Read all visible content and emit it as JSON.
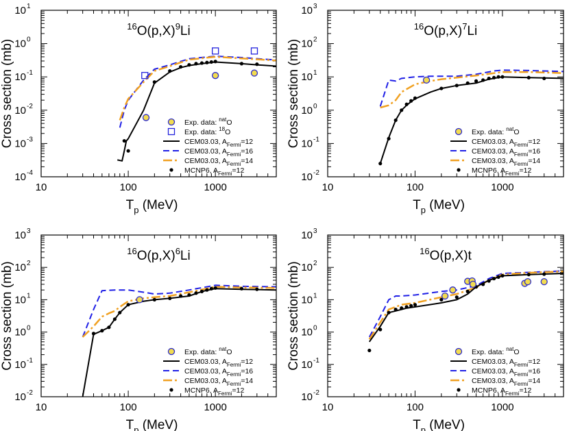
{
  "figure": {
    "ylabel": "Cross section (mb)",
    "xlabel_main": "T",
    "xlabel_sub": "p",
    "xlabel_unit": " (MeV)"
  },
  "chart_data": [
    {
      "type": "line",
      "title_parts": [
        "16",
        "O(p,X)",
        "9",
        "Li"
      ],
      "xscale": "log",
      "yscale": "log",
      "xlim": [
        10,
        5000
      ],
      "ylim": [
        0.0001,
        10
      ],
      "xticks": [
        10,
        100,
        1000
      ],
      "xtick_labels": [
        "10",
        "100",
        "1000"
      ],
      "ytick_labels": [
        [
          "10",
          "-4"
        ],
        [
          "10",
          "-3"
        ],
        [
          "10",
          "-2"
        ],
        [
          "10",
          "-1"
        ],
        [
          "10",
          "0"
        ],
        [
          "10",
          "1"
        ]
      ],
      "yticks": [
        0.0001,
        0.001,
        0.01,
        0.1,
        1,
        10
      ],
      "legend_position": "lower-right",
      "legend": [
        {
          "key": "exp_nat",
          "label": [
            "Exp. data: ",
            "nat",
            "O"
          ]
        },
        {
          "key": "exp_18",
          "label": [
            "Exp. data: ",
            "18",
            "O"
          ]
        },
        {
          "key": "cem12",
          "label": [
            "CEM03.03, A",
            "Fermi",
            "=12"
          ]
        },
        {
          "key": "cem16",
          "label": [
            "CEM03.03, A",
            "Fermi",
            "=16"
          ]
        },
        {
          "key": "cem14",
          "label": [
            "CEM03.03, A",
            "Fermi",
            "=14"
          ]
        },
        {
          "key": "mcnp",
          "label": [
            "MCNP6, A",
            "Fermi",
            "=12"
          ]
        }
      ],
      "series": [
        {
          "key": "cem16",
          "style": "blue-dash",
          "x": [
            80,
            90,
            100,
            150,
            200,
            300,
            500,
            1000,
            2000,
            5000
          ],
          "y": [
            0.003,
            0.01,
            0.02,
            0.08,
            0.17,
            0.23,
            0.35,
            0.42,
            0.38,
            0.32
          ]
        },
        {
          "key": "cem14",
          "style": "orange-dashdot",
          "x": [
            80,
            90,
            100,
            150,
            200,
            300,
            500,
            1000,
            2000,
            5000
          ],
          "y": [
            0.005,
            0.012,
            0.022,
            0.07,
            0.15,
            0.21,
            0.33,
            0.4,
            0.36,
            0.31
          ]
        },
        {
          "key": "cem12",
          "style": "black-solid",
          "x": [
            75,
            85,
            90,
            95,
            100,
            150,
            200,
            300,
            400,
            500,
            700,
            1000,
            2000,
            3000,
            5000
          ],
          "y": [
            0.00032,
            0.0003,
            0.0006,
            0.0012,
            0.0014,
            0.01,
            0.065,
            0.14,
            0.19,
            0.22,
            0.25,
            0.28,
            0.25,
            0.23,
            0.21
          ]
        },
        {
          "key": "mcnp",
          "style": "black-dot",
          "x": [
            90,
            100,
            200,
            300,
            400,
            500,
            600,
            700,
            800,
            900,
            1000,
            2000,
            3000
          ],
          "y": [
            0.0012,
            0.0006,
            0.07,
            0.15,
            0.2,
            0.23,
            0.25,
            0.26,
            0.27,
            0.28,
            0.29,
            0.25,
            0.24
          ]
        },
        {
          "key": "exp_nat",
          "style": "yellow-circle",
          "x": [
            160,
            1000,
            2800
          ],
          "y": [
            0.006,
            0.11,
            0.13
          ]
        },
        {
          "key": "exp_18",
          "style": "blue-square",
          "x": [
            155,
            1000,
            2800
          ],
          "y": [
            0.11,
            0.6,
            0.6
          ]
        }
      ]
    },
    {
      "type": "line",
      "title_parts": [
        "16",
        "O(p,X)",
        "7",
        "Li"
      ],
      "xscale": "log",
      "yscale": "log",
      "xlim": [
        10,
        5000
      ],
      "ylim": [
        0.01,
        1000
      ],
      "xticks": [
        10,
        100,
        1000
      ],
      "xtick_labels": [
        "10",
        "100",
        "1000"
      ],
      "ytick_labels": [
        [
          "10",
          "-2"
        ],
        [
          "10",
          "-1"
        ],
        [
          "10",
          "0"
        ],
        [
          "10",
          "1"
        ],
        [
          "10",
          "2"
        ],
        [
          "10",
          "3"
        ]
      ],
      "yticks": [
        0.01,
        0.1,
        1,
        10,
        100,
        1000
      ],
      "legend_position": "lower-right",
      "legend": [
        {
          "key": "exp_nat",
          "label": [
            "Exp. data: ",
            "nat",
            "O"
          ]
        },
        {
          "key": "cem12",
          "label": [
            "CEM03.03, A",
            "Fermi",
            "=12"
          ]
        },
        {
          "key": "cem16",
          "label": [
            "CEM03.03, A",
            "Fermi",
            "=16"
          ]
        },
        {
          "key": "cem14",
          "label": [
            "CEM03.03, A",
            "Fermi",
            "=14"
          ]
        },
        {
          "key": "mcnp",
          "label": [
            "MCNP6, A",
            "Fermi",
            "=12"
          ]
        }
      ],
      "series": [
        {
          "key": "cem16",
          "style": "blue-dash",
          "x": [
            40,
            50,
            60,
            70,
            100,
            150,
            200,
            300,
            500,
            800,
            1000,
            2000,
            5000
          ],
          "y": [
            1.3,
            8,
            7.5,
            9,
            10,
            10.5,
            10.5,
            10.5,
            12,
            15,
            16,
            15.5,
            14.5
          ]
        },
        {
          "key": "cem14",
          "style": "orange-dashdot",
          "x": [
            40,
            50,
            60,
            70,
            100,
            150,
            200,
            300,
            500,
            1000,
            2000,
            5000
          ],
          "y": [
            1.2,
            1.4,
            2,
            3.5,
            6,
            7.5,
            8.5,
            9.5,
            11,
            14,
            14,
            13
          ]
        },
        {
          "key": "cem12",
          "style": "black-solid",
          "x": [
            40,
            50,
            60,
            70,
            80,
            90,
            100,
            150,
            200,
            300,
            500,
            700,
            1000,
            2000,
            5000
          ],
          "y": [
            0.025,
            0.15,
            0.5,
            1.0,
            1.4,
            1.8,
            2.2,
            3.5,
            4.5,
            5.5,
            6.5,
            8.5,
            10,
            9.5,
            9
          ]
        },
        {
          "key": "mcnp",
          "style": "black-dot",
          "x": [
            40,
            50,
            60,
            70,
            80,
            90,
            100,
            200,
            300,
            400,
            500,
            600,
            700,
            800,
            900,
            1000,
            2000,
            3000
          ],
          "y": [
            0.025,
            0.14,
            0.5,
            1.0,
            1.5,
            1.9,
            2.3,
            4.5,
            5.5,
            6.5,
            7.5,
            8,
            9,
            9.5,
            10,
            10,
            9.5,
            9
          ]
        },
        {
          "key": "exp_nat",
          "style": "yellow-circle",
          "x": [
            135
          ],
          "y": [
            8
          ]
        }
      ]
    },
    {
      "type": "line",
      "title_parts": [
        "16",
        "O(p,X)",
        "6",
        "Li"
      ],
      "xscale": "log",
      "yscale": "log",
      "xlim": [
        10,
        5000
      ],
      "ylim": [
        0.01,
        1000
      ],
      "xticks": [
        10,
        100,
        1000
      ],
      "xtick_labels": [
        "10",
        "100",
        "1000"
      ],
      "ytick_labels": [
        [
          "10",
          "-2"
        ],
        [
          "10",
          "-1"
        ],
        [
          "10",
          "0"
        ],
        [
          "10",
          "1"
        ],
        [
          "10",
          "2"
        ],
        [
          "10",
          "3"
        ]
      ],
      "yticks": [
        0.01,
        0.1,
        1,
        10,
        100,
        1000
      ],
      "legend_position": "lower-right",
      "legend": [
        {
          "key": "exp_nat",
          "label": [
            "Exp. data: ",
            "nat",
            "O"
          ]
        },
        {
          "key": "cem12",
          "label": [
            "CEM03.03, A",
            "Fermi",
            "=12"
          ]
        },
        {
          "key": "cem16",
          "label": [
            "CEM03.03, A",
            "Fermi",
            "=16"
          ]
        },
        {
          "key": "cem14",
          "label": [
            "CEM03.03, A",
            "Fermi",
            "=14"
          ]
        },
        {
          "key": "mcnp",
          "label": [
            "MCNP6, A",
            "Fermi",
            "=12"
          ]
        }
      ],
      "series": [
        {
          "key": "cem16",
          "style": "blue-dash",
          "x": [
            30,
            40,
            50,
            70,
            100,
            150,
            200,
            300,
            500,
            1000,
            2000,
            5000
          ],
          "y": [
            0.7,
            5,
            19,
            20,
            20,
            17,
            15,
            16,
            20,
            28,
            26,
            25
          ]
        },
        {
          "key": "cem14",
          "style": "orange-dashdot",
          "x": [
            30,
            40,
            50,
            60,
            70,
            80,
            100,
            150,
            200,
            300,
            500,
            1000,
            2000,
            5000
          ],
          "y": [
            0.7,
            1.5,
            3,
            3.8,
            4.5,
            6,
            9,
            11,
            12,
            13,
            17,
            25,
            24,
            23
          ]
        },
        {
          "key": "cem12",
          "style": "black-solid",
          "x": [
            30,
            40,
            50,
            60,
            70,
            80,
            100,
            150,
            200,
            300,
            500,
            700,
            1000,
            2000,
            5000
          ],
          "y": [
            0.01,
            0.85,
            1.1,
            1.4,
            2.5,
            4,
            7,
            9,
            10,
            11,
            13,
            18,
            22,
            21,
            20
          ]
        },
        {
          "key": "mcnp",
          "style": "black-dot",
          "x": [
            40,
            50,
            60,
            70,
            80,
            100,
            200,
            300,
            400,
            500,
            600,
            700,
            800,
            900,
            1000,
            2000,
            3000
          ],
          "y": [
            0.9,
            1.1,
            1.4,
            2.5,
            4,
            7,
            10,
            11,
            13,
            14,
            16,
            18,
            20,
            22,
            23,
            22,
            21
          ]
        },
        {
          "key": "exp_nat",
          "style": "yellow-circle",
          "x": [
            135
          ],
          "y": [
            10
          ]
        }
      ]
    },
    {
      "type": "line",
      "title_parts": [
        "16",
        "O(p,X)t",
        "",
        ""
      ],
      "xscale": "log",
      "yscale": "log",
      "xlim": [
        10,
        5000
      ],
      "ylim": [
        0.01,
        1000
      ],
      "xticks": [
        10,
        100,
        1000
      ],
      "xtick_labels": [
        "10",
        "100",
        "1000"
      ],
      "ytick_labels": [
        [
          "10",
          "-2"
        ],
        [
          "10",
          "-1"
        ],
        [
          "10",
          "0"
        ],
        [
          "10",
          "1"
        ],
        [
          "10",
          "2"
        ],
        [
          "10",
          "3"
        ]
      ],
      "yticks": [
        0.01,
        0.1,
        1,
        10,
        100,
        1000
      ],
      "legend_position": "lower-right",
      "legend": [
        {
          "key": "exp_nat",
          "label": [
            "Exp. data: ",
            "nat",
            "O"
          ]
        },
        {
          "key": "cem12",
          "label": [
            "CEM03.03, A",
            "Fermi",
            "=12"
          ]
        },
        {
          "key": "cem16",
          "label": [
            "CEM03.03, A",
            "Fermi",
            "=16"
          ]
        },
        {
          "key": "cem14",
          "label": [
            "CEM03.03, A",
            "Fermi",
            "=14"
          ]
        },
        {
          "key": "mcnp",
          "label": [
            "MCNP6, A",
            "Fermi",
            "=12"
          ]
        }
      ],
      "series": [
        {
          "key": "cem16",
          "style": "blue-dash",
          "x": [
            30,
            40,
            50,
            60,
            70,
            100,
            200,
            300,
            500,
            700,
            1000,
            2000,
            5000
          ],
          "y": [
            0.7,
            3,
            10,
            13,
            13,
            14,
            18,
            20,
            27,
            45,
            65,
            70,
            78
          ]
        },
        {
          "key": "cem14",
          "style": "orange-dashdot",
          "x": [
            30,
            40,
            50,
            60,
            70,
            100,
            200,
            300,
            500,
            700,
            1000,
            2000,
            5000
          ],
          "y": [
            0.6,
            2,
            5,
            6,
            7,
            8,
            12,
            15,
            24,
            40,
            60,
            68,
            75
          ]
        },
        {
          "key": "cem12",
          "style": "black-solid",
          "x": [
            30,
            40,
            50,
            60,
            70,
            80,
            100,
            200,
            300,
            400,
            500,
            700,
            1000,
            2000,
            5000
          ],
          "y": [
            0.5,
            1.5,
            4,
            4.5,
            5,
            5.5,
            6,
            8,
            10,
            15,
            25,
            40,
            55,
            60,
            65
          ]
        },
        {
          "key": "mcnp",
          "style": "black-dot",
          "x": [
            30,
            40,
            50,
            60,
            70,
            80,
            90,
            100,
            200,
            300,
            400,
            500,
            600,
            700,
            800,
            900,
            1000,
            2000,
            3000
          ],
          "y": [
            0.27,
            1.2,
            4,
            5,
            5.5,
            6,
            6.5,
            7,
            10,
            12,
            18,
            25,
            30,
            38,
            45,
            50,
            55,
            60,
            62
          ]
        },
        {
          "key": "exp_nat",
          "style": "yellow-circle",
          "x": [
            220,
            270,
            400,
            450,
            460,
            1800,
            1950,
            3000
          ],
          "y": [
            13,
            20,
            37,
            38,
            30,
            32,
            36,
            36
          ]
        }
      ]
    }
  ]
}
